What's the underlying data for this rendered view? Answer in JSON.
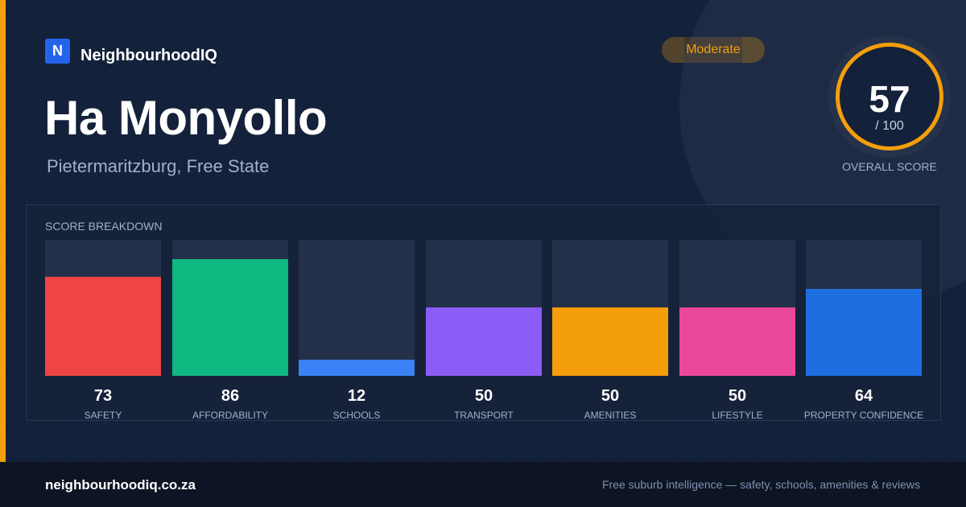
{
  "brand": {
    "logo_letter": "N",
    "name": "NeighbourhoodIQ"
  },
  "suburb": {
    "name": "Ha Monyollo",
    "location": "Pietermaritzburg, Free State"
  },
  "rating": {
    "label": "Moderate"
  },
  "overall": {
    "score": "57",
    "max_label": "/ 100",
    "label": "OVERALL SCORE",
    "ring_color": "#f59e0b"
  },
  "breakdown": {
    "heading": "SCORE BREAKDOWN",
    "items": [
      {
        "label": "SAFETY",
        "score": "73",
        "color": "#ef4444"
      },
      {
        "label": "AFFORDABILITY",
        "score": "86",
        "color": "#10b981"
      },
      {
        "label": "SCHOOLS",
        "score": "12",
        "color": "#3b82f6"
      },
      {
        "label": "TRANSPORT",
        "score": "50",
        "color": "#8b5cf6"
      },
      {
        "label": "AMENITIES",
        "score": "50",
        "color": "#f59e0b"
      },
      {
        "label": "LIFESTYLE",
        "score": "50",
        "color": "#ec4899"
      },
      {
        "label": "PROPERTY CONFIDENCE",
        "score": "64",
        "color": "#1d6fe0"
      }
    ]
  },
  "footer": {
    "domain": "neighbourhoodiq.co.za",
    "tagline": "Free suburb intelligence — safety, schools, amenities & reviews"
  }
}
